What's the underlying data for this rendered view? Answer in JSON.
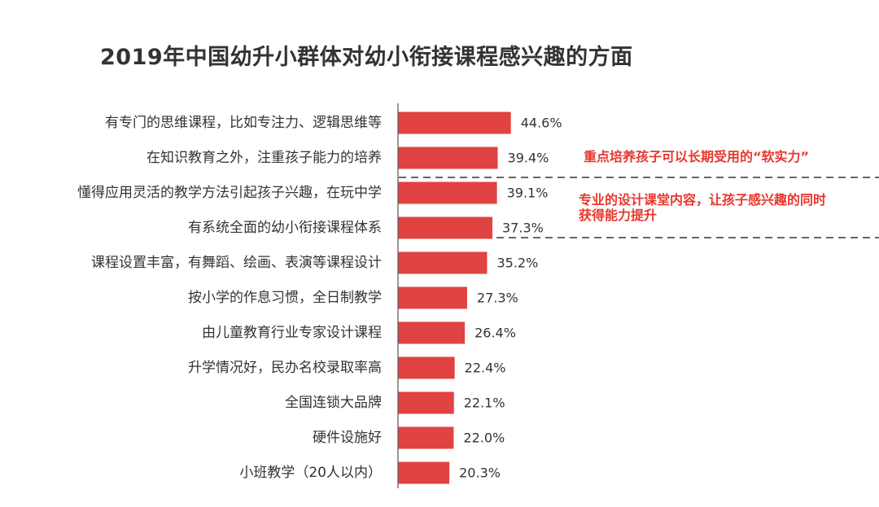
{
  "title": "2019年中国幼升小群体对幼小衔接课程感兴趣的方面",
  "colors": {
    "bar": "#e04342",
    "annotation": "#e8372d",
    "axis": "#555555",
    "text": "#333333"
  },
  "annotations": [
    {
      "text": "重点培养孩子可以长期受用的“软实力”"
    },
    {
      "line1": "专业的设计课堂内容，让孩子感兴趣的同时",
      "line2": "获得能力提升"
    }
  ],
  "chart_data": {
    "type": "bar",
    "orientation": "horizontal",
    "title": "2019年中国幼升小群体对幼小衔接课程感兴趣的方面",
    "categories": [
      "有专门的思维课程，比如专注力、逻辑思维等",
      "在知识教育之外，注重孩子能力的培养",
      "懂得应用灵活的教学方法引起孩子兴趣，在玩中学",
      "有系统全面的幼小衔接课程体系",
      "课程设置丰富，有舞蹈、绘画、表演等课程设计",
      "按小学的作息习惯，全日制教学",
      "由儿童教育行业专家设计课程",
      "升学情况好，民办名校录取率高",
      "全国连锁大品牌",
      "硬件设施好",
      "小班教学（20人以内）"
    ],
    "values": [
      44.6,
      39.4,
      39.1,
      37.3,
      35.2,
      27.3,
      26.4,
      22.4,
      22.1,
      22.0,
      20.3
    ],
    "value_labels": [
      "44.6%",
      "39.4%",
      "39.1%",
      "37.3%",
      "35.2%",
      "27.3%",
      "26.4%",
      "22.4%",
      "22.1%",
      "22.0%",
      "20.3%"
    ],
    "xlim": [
      0,
      100
    ],
    "grid": false,
    "legend": "none"
  }
}
